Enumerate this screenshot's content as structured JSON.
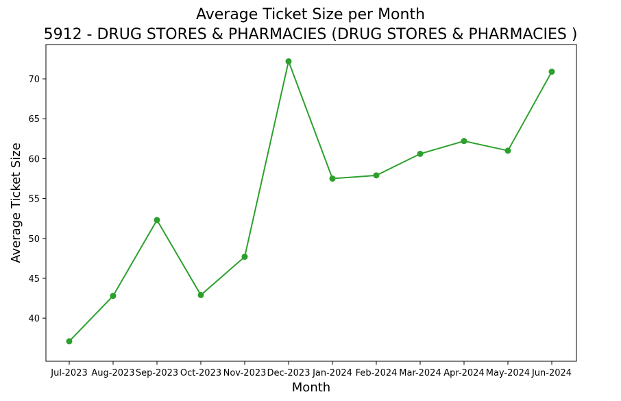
{
  "chart_data": {
    "type": "line",
    "title": "Average Ticket Size per Month",
    "subtitle": "5912 - DRUG STORES & PHARMACIES (DRUG STORES & PHARMACIES )",
    "xlabel": "Month",
    "ylabel": "Average Ticket Size",
    "categories": [
      "Jul-2023",
      "Aug-2023",
      "Sep-2023",
      "Oct-2023",
      "Nov-2023",
      "Dec-2023",
      "Jan-2024",
      "Feb-2024",
      "Mar-2024",
      "Apr-2024",
      "May-2024",
      "Jun-2024"
    ],
    "series": [
      {
        "values": [
          37.1,
          42.8,
          52.3,
          42.9,
          47.7,
          72.2,
          57.5,
          57.9,
          60.6,
          62.2,
          61.0,
          70.9
        ],
        "color": "#2ca02c"
      }
    ],
    "yticks": [
      40,
      45,
      50,
      55,
      60,
      65,
      70
    ],
    "ylim": [
      34.6,
      74.3
    ],
    "grid": false,
    "marker": "circle"
  }
}
